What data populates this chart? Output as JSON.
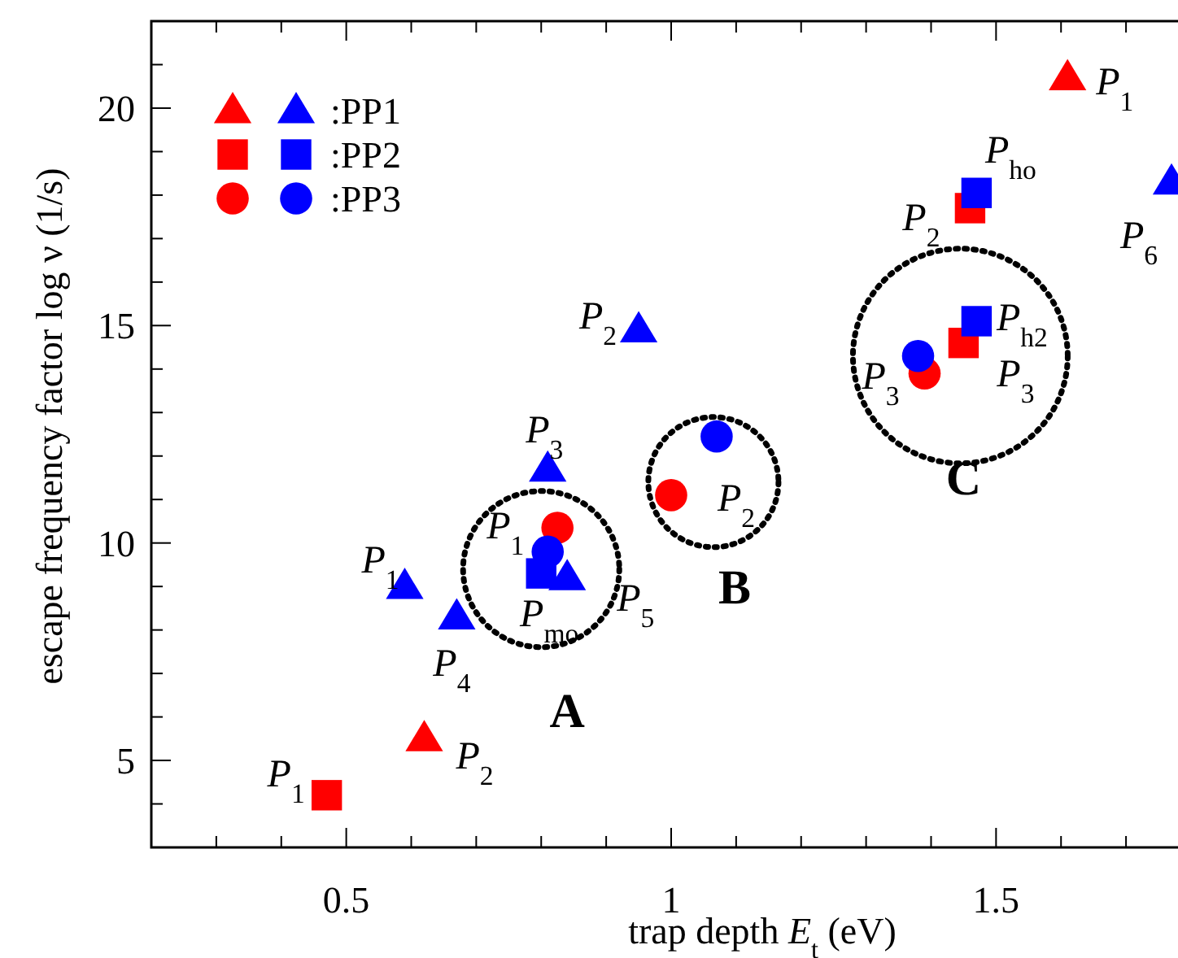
{
  "chart_data": {
    "type": "scatter",
    "xlabel": "trap depth E$_{t}$ (eV)",
    "ylabel": "escape frequency factor log ν (1/s)",
    "xlim": [
      0.2,
      1.78
    ],
    "ylim": [
      3,
      22
    ],
    "xticks": [
      {
        "value": 0.3,
        "label": null
      },
      {
        "value": 0.4,
        "label": null
      },
      {
        "value": 0.5,
        "label": "0.5"
      },
      {
        "value": 0.6,
        "label": null
      },
      {
        "value": 0.7,
        "label": null
      },
      {
        "value": 0.8,
        "label": null
      },
      {
        "value": 0.9,
        "label": null
      },
      1,
      {
        "value": 1.1,
        "label": null
      },
      {
        "value": 1.2,
        "label": null
      },
      {
        "value": 1.3,
        "label": null
      },
      {
        "value": 1.4,
        "label": null
      },
      1.5,
      {
        "value": 1.6,
        "label": null
      },
      {
        "value": 1.7,
        "label": null
      }
    ],
    "yticks": [
      {
        "value": 3,
        "label": null
      },
      {
        "value": 4,
        "label": null
      },
      5,
      {
        "value": 6,
        "label": null
      },
      {
        "value": 7,
        "label": null
      },
      {
        "value": 8,
        "label": null
      },
      {
        "value": 9,
        "label": null
      },
      10,
      {
        "value": 11,
        "label": null
      },
      {
        "value": 12,
        "label": null
      },
      {
        "value": 13,
        "label": null
      },
      {
        "value": 14,
        "label": null
      },
      15,
      {
        "value": 16,
        "label": null
      },
      {
        "value": 17,
        "label": null
      },
      {
        "value": 18,
        "label": null
      },
      {
        "value": 19,
        "label": null
      },
      20,
      {
        "value": 21,
        "label": null
      },
      {
        "value": 22,
        "label": null
      }
    ],
    "legend": "top left",
    "series": [
      {
        "name": ":PP1",
        "marker": "triangle",
        "colors": [
          "#ff0000",
          "#ff0000",
          "#0000ff",
          "#0000ff",
          "#0000ff",
          "#0000ff",
          "#0000ff",
          "#0000ff"
        ],
        "x": [
          0.62,
          1.61,
          0.59,
          0.67,
          0.81,
          0.84,
          0.95,
          1.77
        ],
        "values": [
          5.5,
          20.7,
          9.0,
          8.3,
          11.7,
          9.2,
          14.9,
          18.3
        ]
      },
      {
        "name": ":PP2",
        "marker": "square",
        "colors": [
          "#ff0000",
          "#ff0000",
          "#ff0000",
          "#0000ff",
          "#0000ff",
          "#0000ff"
        ],
        "x": [
          0.47,
          1.45,
          1.46,
          0.8,
          1.47,
          1.47
        ],
        "values": [
          4.2,
          14.6,
          17.7,
          9.3,
          15.1,
          18.05
        ]
      },
      {
        "name": ":PP3",
        "marker": "circle",
        "colors": [
          "#ff0000",
          "#ff0000",
          "#ff0000",
          "#0000ff",
          "#0000ff",
          "#0000ff"
        ],
        "x": [
          0.825,
          1.0,
          1.39,
          0.81,
          1.07,
          1.38
        ],
        "values": [
          10.35,
          11.1,
          13.9,
          9.8,
          12.45,
          14.3
        ]
      }
    ],
    "annotations": [
      {
        "text": "P$_{1}$",
        "x": 1.61,
        "y": 20.7
      },
      {
        "text": "P$_{ho}$",
        "x": 1.47,
        "y": 18.05
      },
      {
        "text": "P$_{6}$",
        "x": 1.77,
        "y": 18.3
      },
      {
        "text": "P$_{2}$",
        "x": 1.46,
        "y": 17.7
      },
      {
        "text": "P$_{h2}$",
        "x": 1.47,
        "y": 15.1
      },
      {
        "text": "P$_{3}$",
        "x": 1.45,
        "y": 14.6
      },
      {
        "text": "P$_{3}$",
        "x": 1.39,
        "y": 13.9
      },
      {
        "text": "C",
        "x": 1.39,
        "y": 13.9
      },
      {
        "text": "P$_{2}$",
        "x": 1.0,
        "y": 11.1
      },
      {
        "text": "B",
        "x": 1.0,
        "y": 11.1
      },
      {
        "text": "P$_{2}$",
        "x": 0.95,
        "y": 14.9
      },
      {
        "text": "P$_{3}$",
        "x": 0.81,
        "y": 11.7
      },
      {
        "text": "P$_{1}$",
        "x": 0.825,
        "y": 10.35
      },
      {
        "text": "P$_{5}$",
        "x": 0.84,
        "y": 9.2
      },
      {
        "text": "P$_{mo}$",
        "x": 0.8,
        "y": 9.3
      },
      {
        "text": "P$_{4}$",
        "x": 0.67,
        "y": 8.3
      },
      {
        "text": "A",
        "x": 0.8,
        "y": 9.3
      },
      {
        "text": "P$_{1}$",
        "x": 0.59,
        "y": 9.0
      },
      {
        "text": "P$_{2}$",
        "x": 0.62,
        "y": 5.5
      },
      {
        "text": "P$_{1}$",
        "x": 0.47,
        "y": 4.2
      }
    ]
  }
}
